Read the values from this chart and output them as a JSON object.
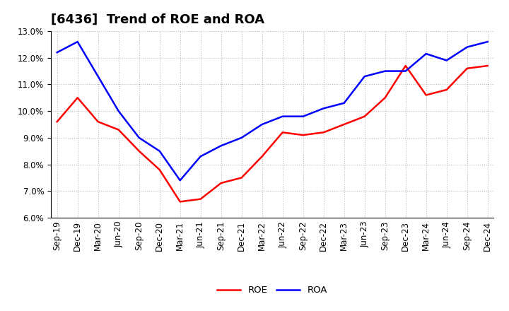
{
  "title": "[6436]  Trend of ROE and ROA",
  "x_labels": [
    "Sep-19",
    "Dec-19",
    "Mar-20",
    "Jun-20",
    "Sep-20",
    "Dec-20",
    "Mar-21",
    "Jun-21",
    "Sep-21",
    "Dec-21",
    "Mar-22",
    "Jun-22",
    "Sep-22",
    "Dec-22",
    "Mar-23",
    "Jun-23",
    "Sep-23",
    "Dec-23",
    "Mar-24",
    "Jun-24",
    "Sep-24",
    "Dec-24"
  ],
  "roe": [
    9.6,
    10.5,
    9.6,
    9.3,
    8.5,
    7.8,
    6.6,
    6.7,
    7.3,
    7.5,
    8.3,
    9.2,
    9.1,
    9.2,
    9.5,
    9.8,
    10.5,
    11.7,
    10.6,
    10.8,
    11.6,
    11.7
  ],
  "roa": [
    12.2,
    12.6,
    11.3,
    10.0,
    9.0,
    8.5,
    7.4,
    8.3,
    8.7,
    9.0,
    9.5,
    9.8,
    9.8,
    10.1,
    10.3,
    11.3,
    11.5,
    11.5,
    12.15,
    11.9,
    12.4,
    12.6
  ],
  "roe_color": "#ff0000",
  "roa_color": "#0000ff",
  "ylim": [
    6.0,
    13.0
  ],
  "yticks": [
    6.0,
    7.0,
    8.0,
    9.0,
    10.0,
    11.0,
    12.0,
    13.0
  ],
  "background_color": "#ffffff",
  "grid_color": "#bbbbbb",
  "title_fontsize": 13,
  "axis_fontsize": 8.5,
  "legend_fontsize": 9.5,
  "line_width": 1.8
}
